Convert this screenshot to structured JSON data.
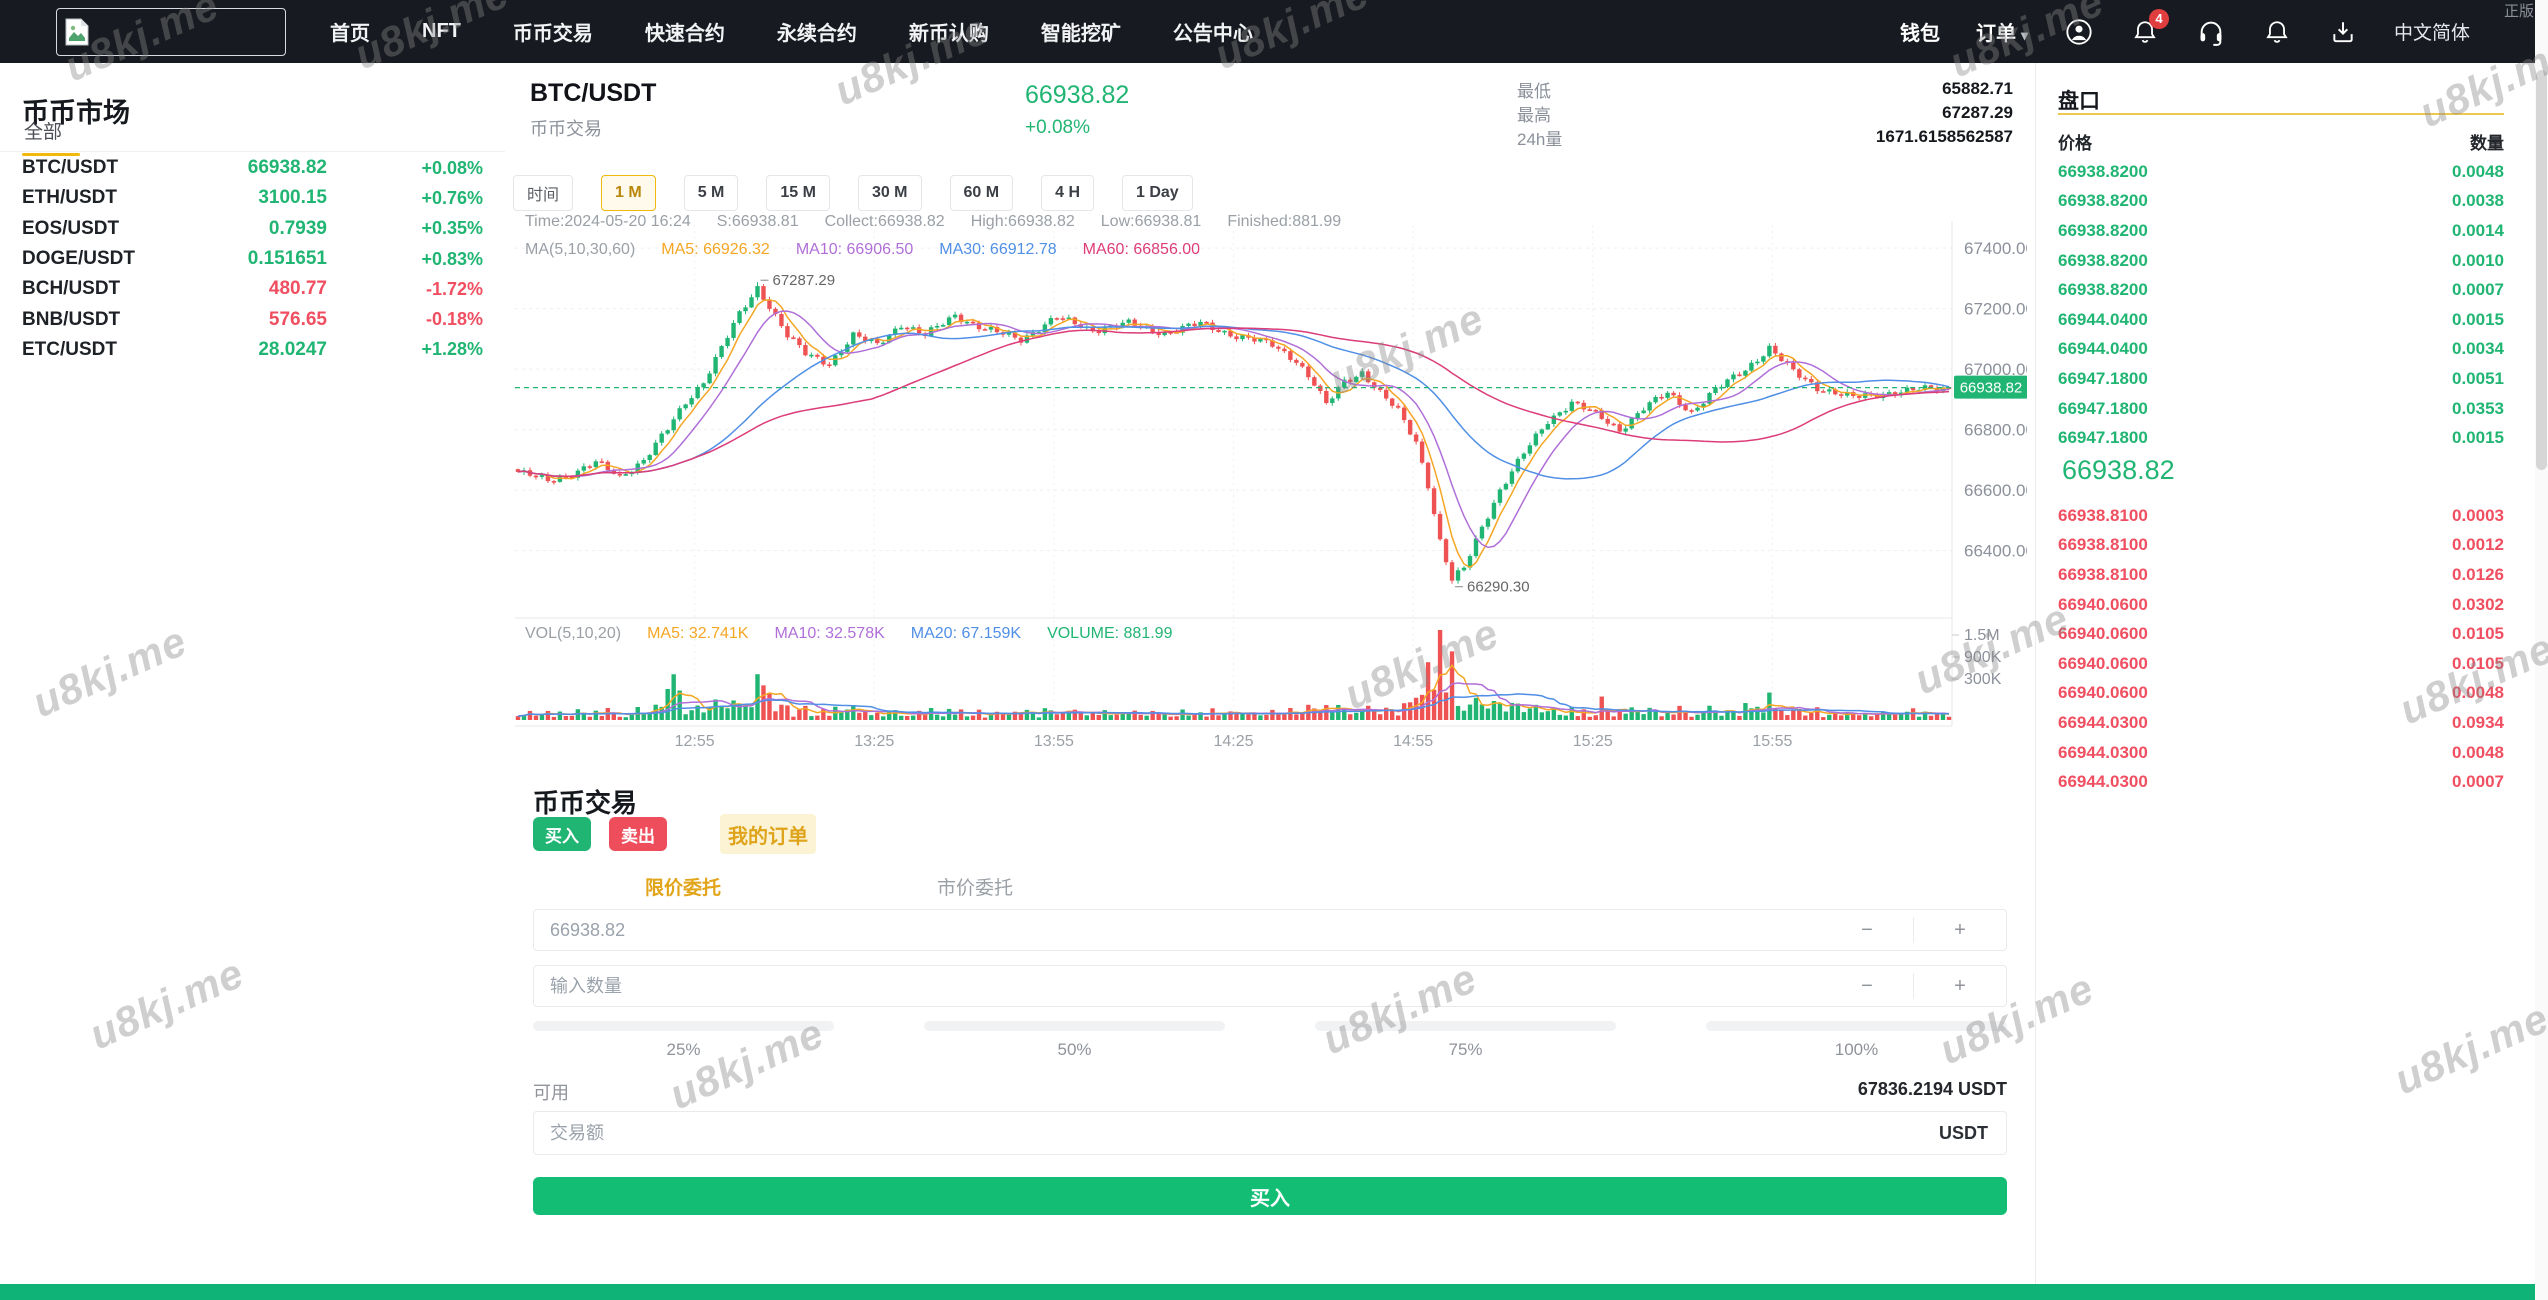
{
  "watermark": "u8kj.me",
  "colors": {
    "green": "#21b573",
    "red": "#ee5253",
    "text_red": "#ef4f60",
    "yellow": "#f0b90b",
    "ma5": "#f5a623",
    "ma10": "#b06fd8",
    "ma30": "#4f8fe6",
    "ma60": "#dc3c78",
    "nav_bg": "#171a20",
    "buy_green": "#13bd74",
    "sell_red": "#ee4d5c",
    "footer_green": "#10b377"
  },
  "navbar": {
    "items": [
      {
        "label": "首页",
        "slug": "home"
      },
      {
        "label": "NFT",
        "slug": "nft"
      },
      {
        "label": "币币交易",
        "slug": "spot-trade"
      },
      {
        "label": "快速合约",
        "slug": "quick-contract"
      },
      {
        "label": "永续合约",
        "slug": "perpetual-contract"
      },
      {
        "label": "新币认购",
        "slug": "new-coin"
      },
      {
        "label": "智能挖矿",
        "slug": "smart-mining"
      },
      {
        "label": "公告中心",
        "slug": "announcements"
      }
    ],
    "wallet_label": "钱包",
    "orders_label": "订单",
    "badge_count": "4",
    "language": "中文简体",
    "corner_text": "正版"
  },
  "market_panel": {
    "title": "币币市场",
    "tab_all": "全部",
    "rows": [
      {
        "pair": "BTC/USDT",
        "price": "66938.82",
        "change": "+0.08%",
        "dir": "up"
      },
      {
        "pair": "ETH/USDT",
        "price": "3100.15",
        "change": "+0.76%",
        "dir": "up"
      },
      {
        "pair": "EOS/USDT",
        "price": "0.7939",
        "change": "+0.35%",
        "dir": "up"
      },
      {
        "pair": "DOGE/USDT",
        "price": "0.151651",
        "change": "+0.83%",
        "dir": "up"
      },
      {
        "pair": "BCH/USDT",
        "price": "480.77",
        "change": "-1.72%",
        "dir": "down"
      },
      {
        "pair": "BNB/USDT",
        "price": "576.65",
        "change": "-0.18%",
        "dir": "down"
      },
      {
        "pair": "ETC/USDT",
        "price": "28.0247",
        "change": "+1.28%",
        "dir": "up"
      }
    ]
  },
  "chart_header": {
    "symbol": "BTC/USDT",
    "subtitle": "币币交易",
    "price": "66938.82",
    "change": "+0.08%",
    "stats": [
      {
        "label": "最低",
        "value": "65882.71"
      },
      {
        "label": "最高",
        "value": "67287.29"
      },
      {
        "label": "24h量",
        "value": "1671.6158562587"
      }
    ]
  },
  "timeframe": {
    "label": "时间",
    "options": [
      "1 M",
      "5 M",
      "15 M",
      "30 M",
      "60 M",
      "4 H",
      "1 Day"
    ],
    "active": "1 M"
  },
  "chart_info": {
    "line1": [
      "Time:2024-05-20 16:24",
      "S:66938.81",
      "Collect:66938.82",
      "High:66938.82",
      "Low:66938.81",
      "Finished:881.99"
    ],
    "line2_label": "MA(5,10,30,60)",
    "line2": [
      {
        "text": "MA5: 66926.32",
        "color": "ma5"
      },
      {
        "text": "MA10: 66906.50",
        "color": "ma10"
      },
      {
        "text": "MA30: 66912.78",
        "color": "ma30"
      },
      {
        "text": "MA60: 66856.00",
        "color": "ma60"
      }
    ]
  },
  "volume_info": {
    "label": "VOL(5,10,20)",
    "parts": [
      {
        "text": "MA5: 32.741K",
        "color": "ma5"
      },
      {
        "text": "MA10: 32.578K",
        "color": "ma10"
      },
      {
        "text": "MA20: 67.159K",
        "color": "ma30"
      },
      {
        "text": "VOLUME: 881.99",
        "color": "green"
      }
    ]
  },
  "chart_data": {
    "type": "candlestick",
    "symbol": "BTC/USDT",
    "interval": "1M",
    "x_ticks": [
      "12:55",
      "13:25",
      "13:55",
      "14:25",
      "14:55",
      "15:25",
      "15:55"
    ],
    "y_ticks": [
      67400,
      67200,
      67000,
      66800,
      66600,
      66400
    ],
    "y_range": [
      66220,
      67450
    ],
    "volume_ticks": [
      "1.5M",
      "900K",
      "300K"
    ],
    "current_price": 66938.82,
    "annotations": {
      "high": "67287.29",
      "low": "66290.30"
    },
    "count": 240,
    "first_tick_index": 30,
    "candles_per_tick": 30,
    "peak_index": 40,
    "trough_index": 156,
    "close_anchors": [
      [
        0,
        66660
      ],
      [
        5,
        66630
      ],
      [
        9,
        66655
      ],
      [
        13,
        66690
      ],
      [
        17,
        66645
      ],
      [
        21,
        66700
      ],
      [
        25,
        66800
      ],
      [
        28,
        66890
      ],
      [
        31,
        66960
      ],
      [
        34,
        67070
      ],
      [
        37,
        67180
      ],
      [
        40,
        67270
      ],
      [
        42,
        67210
      ],
      [
        45,
        67110
      ],
      [
        48,
        67050
      ],
      [
        52,
        67020
      ],
      [
        56,
        67110
      ],
      [
        60,
        67080
      ],
      [
        64,
        67150
      ],
      [
        68,
        67110
      ],
      [
        73,
        67180
      ],
      [
        78,
        67130
      ],
      [
        84,
        67100
      ],
      [
        90,
        67170
      ],
      [
        96,
        67130
      ],
      [
        102,
        67150
      ],
      [
        108,
        67120
      ],
      [
        114,
        67150
      ],
      [
        120,
        67110
      ],
      [
        126,
        67080
      ],
      [
        130,
        67030
      ],
      [
        133,
        66950
      ],
      [
        135,
        66880
      ],
      [
        138,
        66960
      ],
      [
        141,
        66990
      ],
      [
        144,
        66920
      ],
      [
        147,
        66860
      ],
      [
        150,
        66760
      ],
      [
        152,
        66620
      ],
      [
        154,
        66430
      ],
      [
        156,
        66300
      ],
      [
        158,
        66340
      ],
      [
        161,
        66480
      ],
      [
        164,
        66600
      ],
      [
        168,
        66720
      ],
      [
        172,
        66830
      ],
      [
        176,
        66890
      ],
      [
        180,
        66850
      ],
      [
        184,
        66800
      ],
      [
        188,
        66870
      ],
      [
        192,
        66920
      ],
      [
        196,
        66860
      ],
      [
        200,
        66930
      ],
      [
        205,
        67000
      ],
      [
        209,
        67070
      ],
      [
        213,
        66990
      ],
      [
        217,
        66940
      ],
      [
        223,
        66905
      ],
      [
        230,
        66925
      ],
      [
        239,
        66938.82
      ]
    ],
    "volume_boost": [
      [
        25,
        5
      ],
      [
        26,
        3
      ],
      [
        27,
        2
      ],
      [
        38,
        2
      ],
      [
        40,
        3
      ],
      [
        41,
        2
      ],
      [
        42,
        2
      ],
      [
        90,
        3
      ],
      [
        91,
        2
      ],
      [
        92,
        2
      ],
      [
        118,
        2
      ],
      [
        150,
        2
      ],
      [
        152,
        2
      ],
      [
        154,
        3
      ],
      [
        156,
        3
      ],
      [
        158,
        2
      ],
      [
        180,
        2
      ],
      [
        181,
        2
      ],
      [
        205,
        2
      ],
      [
        207,
        3
      ],
      [
        209,
        2
      ],
      [
        233,
        2
      ]
    ],
    "ma_periods": {
      "price": [
        5,
        10,
        30,
        60
      ],
      "volume": [
        5,
        10,
        20
      ]
    }
  },
  "trade_panel": {
    "title": "币币交易",
    "buy_tab": "买入",
    "sell_tab": "卖出",
    "orders_tab": "我的订单",
    "limit_tab": "限价委托",
    "market_tab": "市价委托",
    "price_value": "66938.82",
    "amount_placeholder": "输入数量",
    "minus": "−",
    "plus": "+",
    "percents": [
      "25%",
      "50%",
      "75%",
      "100%"
    ],
    "available_label": "可用",
    "available_value": "67836.2194 USDT",
    "total_placeholder": "交易额",
    "total_unit": "USDT",
    "submit_label": "买入"
  },
  "order_book": {
    "title": "盘口",
    "price_col": "价格",
    "amount_col": "数量",
    "asks": [
      [
        "66938.8200",
        "0.0048"
      ],
      [
        "66938.8200",
        "0.0038"
      ],
      [
        "66938.8200",
        "0.0014"
      ],
      [
        "66938.8200",
        "0.0010"
      ],
      [
        "66938.8200",
        "0.0007"
      ],
      [
        "66944.0400",
        "0.0015"
      ],
      [
        "66944.0400",
        "0.0034"
      ],
      [
        "66947.1800",
        "0.0051"
      ],
      [
        "66947.1800",
        "0.0353"
      ],
      [
        "66947.1800",
        "0.0015"
      ]
    ],
    "current_price": "66938.82",
    "bids": [
      [
        "66938.8100",
        "0.0003"
      ],
      [
        "66938.8100",
        "0.0012"
      ],
      [
        "66938.8100",
        "0.0126"
      ],
      [
        "66940.0600",
        "0.0302"
      ],
      [
        "66940.0600",
        "0.0105"
      ],
      [
        "66940.0600",
        "0.0105"
      ],
      [
        "66940.0600",
        "0.0048"
      ],
      [
        "66944.0300",
        "0.0934"
      ],
      [
        "66944.0300",
        "0.0048"
      ],
      [
        "66944.0300",
        "0.0007"
      ]
    ]
  }
}
